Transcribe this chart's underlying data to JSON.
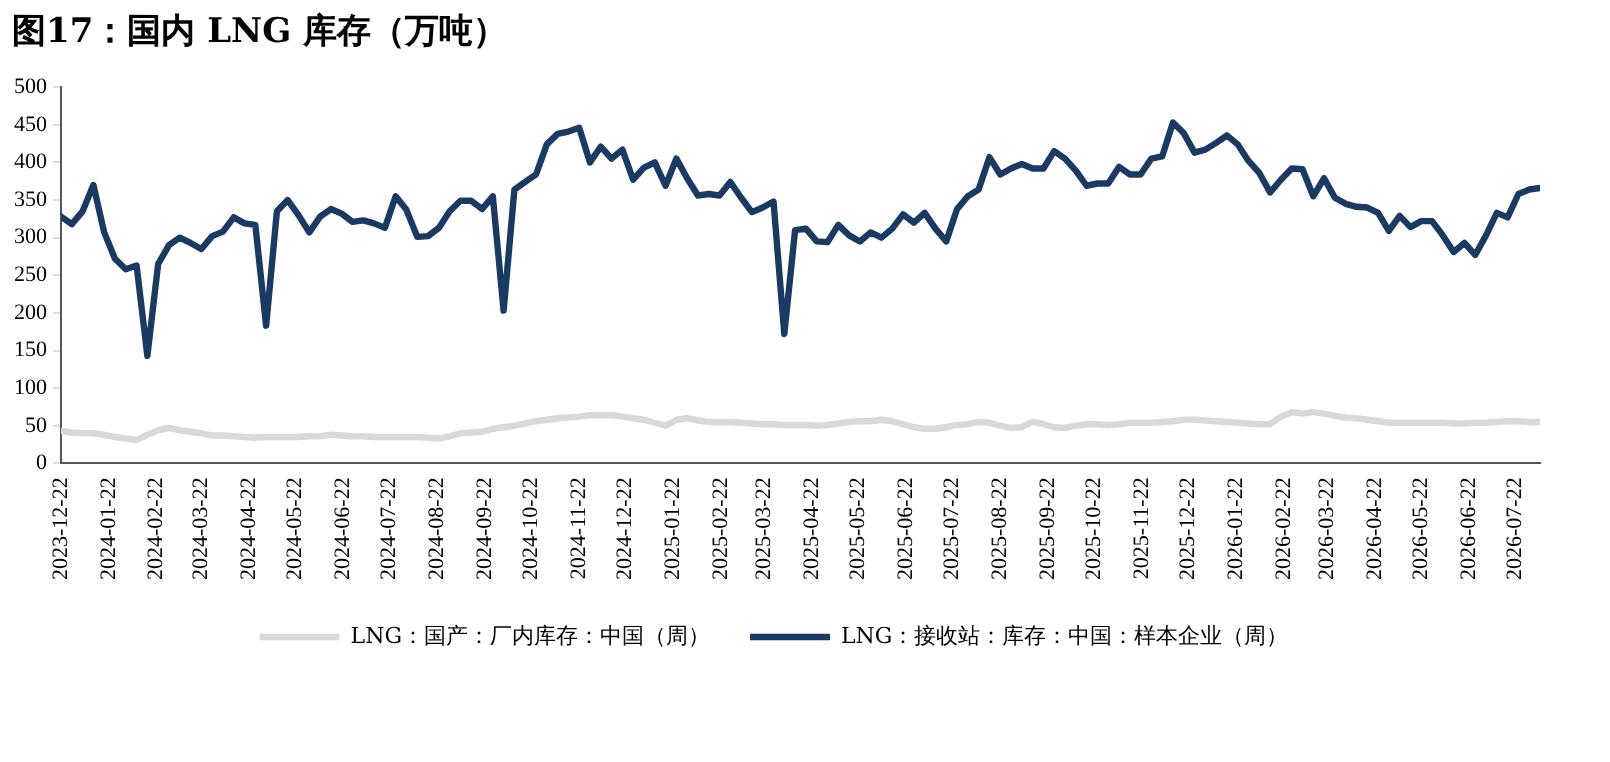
{
  "chart_data": {
    "type": "line",
    "title": "图17：国内 LNG 库存（万吨）",
    "x": [
      "2023-12-22",
      "2023-12-29",
      "2024-01-05",
      "2024-01-12",
      "2024-01-19",
      "2024-01-26",
      "2024-02-02",
      "2024-02-09",
      "2024-02-16",
      "2024-02-23",
      "2024-03-01",
      "2024-03-08",
      "2024-03-15",
      "2024-03-22",
      "2024-03-29",
      "2024-04-05",
      "2024-04-12",
      "2024-04-19",
      "2024-04-26",
      "2024-05-03",
      "2024-05-10",
      "2024-05-17",
      "2024-05-24",
      "2024-05-31",
      "2024-06-07",
      "2024-06-14",
      "2024-06-21",
      "2024-06-28",
      "2024-07-05",
      "2024-07-12",
      "2024-07-19",
      "2024-07-26",
      "2024-08-02",
      "2024-08-09",
      "2024-08-16",
      "2024-08-23",
      "2024-08-30",
      "2024-09-06",
      "2024-09-13",
      "2024-09-20",
      "2024-09-27",
      "2024-10-04",
      "2024-10-11",
      "2024-10-18",
      "2024-10-25",
      "2024-11-01",
      "2024-11-08",
      "2024-11-15",
      "2024-11-22",
      "2024-11-29",
      "2024-12-06",
      "2024-12-13",
      "2024-12-20",
      "2024-12-27",
      "2025-01-03",
      "2025-01-10",
      "2025-01-17",
      "2025-01-24",
      "2025-01-31",
      "2025-02-07",
      "2025-02-14",
      "2025-02-21",
      "2025-02-28",
      "2025-03-07",
      "2025-03-14",
      "2025-03-21",
      "2025-03-28",
      "2025-04-04",
      "2025-04-11",
      "2025-04-18",
      "2025-04-25",
      "2025-05-02",
      "2025-05-09",
      "2025-05-16",
      "2025-05-23",
      "2025-05-30",
      "2025-06-06",
      "2025-06-13",
      "2025-06-20",
      "2025-06-27",
      "2025-07-04",
      "2025-07-11",
      "2025-07-18",
      "2025-07-25",
      "2025-08-01",
      "2025-08-08",
      "2025-08-15",
      "2025-08-22",
      "2025-08-29",
      "2025-09-05",
      "2025-09-12",
      "2025-09-19",
      "2025-09-26",
      "2025-10-03",
      "2025-10-10",
      "2025-10-17",
      "2025-10-24",
      "2025-10-31",
      "2025-11-07",
      "2025-11-14",
      "2025-11-21",
      "2025-11-28",
      "2025-12-05",
      "2025-12-12",
      "2025-12-19",
      "2025-12-26",
      "2026-01-02",
      "2026-01-09",
      "2026-01-16",
      "2026-01-23",
      "2026-01-30",
      "2026-02-06",
      "2026-02-13",
      "2026-02-20",
      "2026-02-27",
      "2026-03-06",
      "2026-03-13",
      "2026-03-20",
      "2026-03-27",
      "2026-04-03",
      "2026-04-10",
      "2026-04-17",
      "2026-04-24",
      "2026-05-01",
      "2026-05-08",
      "2026-05-15",
      "2026-05-22",
      "2026-05-29",
      "2026-06-05",
      "2026-06-12",
      "2026-06-19",
      "2026-06-26",
      "2026-07-03",
      "2026-07-10",
      "2026-07-17",
      "2026-07-24",
      "2026-07-31",
      "2026-08-07"
    ],
    "series": [
      {
        "name": "LNG：国产：厂内库存：中国（周）",
        "color": "#d9d9d9",
        "values": [
          43,
          41,
          40,
          40,
          38,
          35,
          33,
          31,
          38,
          44,
          47,
          44,
          42,
          40,
          37,
          37,
          36,
          35,
          34,
          35,
          35,
          35,
          35,
          36,
          36,
          38,
          37,
          36,
          36,
          35,
          35,
          35,
          35,
          35,
          34,
          33,
          36,
          40,
          41,
          42,
          46,
          48,
          50,
          53,
          56,
          58,
          60,
          61,
          62,
          64,
          64,
          64,
          62,
          60,
          58,
          54,
          50,
          58,
          60,
          57,
          55,
          55,
          55,
          54,
          53,
          52,
          52,
          51,
          51,
          51,
          50,
          51,
          53,
          55,
          56,
          56,
          58,
          56,
          52,
          48,
          46,
          46,
          48,
          51,
          52,
          55,
          54,
          50,
          47,
          48,
          55,
          52,
          48,
          47,
          50,
          52,
          52,
          51,
          52,
          54,
          54,
          54,
          55,
          56,
          58,
          58,
          57,
          56,
          55,
          54,
          53,
          52,
          52,
          62,
          68,
          66,
          68,
          66,
          63,
          61,
          60,
          58,
          56,
          54,
          54,
          54,
          54,
          54,
          54,
          53,
          53,
          54,
          54,
          55,
          56,
          56,
          55,
          55
        ]
      },
      {
        "name": "LNG：接收站：库存：中国：样本企业（周）",
        "color": "#1b3a63",
        "values": [
          328,
          318,
          335,
          370,
          307,
          272,
          258,
          263,
          143,
          265,
          290,
          300,
          293,
          285,
          302,
          308,
          327,
          319,
          317,
          183,
          335,
          350,
          330,
          307,
          328,
          338,
          332,
          321,
          323,
          319,
          313,
          355,
          337,
          301,
          302,
          313,
          335,
          349,
          349,
          338,
          355,
          203,
          364,
          374,
          384,
          424,
          438,
          441,
          446,
          400,
          421,
          405,
          417,
          377,
          393,
          400,
          369,
          405,
          379,
          356,
          358,
          356,
          374,
          353,
          334,
          340,
          348,
          172,
          310,
          312,
          295,
          294,
          317,
          303,
          295,
          307,
          300,
          312,
          331,
          320,
          333,
          312,
          295,
          338,
          355,
          364,
          407,
          384,
          392,
          398,
          392,
          392,
          415,
          405,
          389,
          369,
          372,
          372,
          394,
          384,
          384,
          405,
          408,
          453,
          439,
          413,
          417,
          426,
          436,
          424,
          402,
          386,
          360,
          377,
          392,
          391,
          355,
          379,
          353,
          345,
          341,
          340,
          333,
          309,
          329,
          314,
          322,
          322,
          303,
          281,
          293,
          277,
          303,
          333,
          327,
          358,
          364,
          366
        ]
      }
    ],
    "xlim": [
      "2023-12-22",
      "2026-08-07"
    ],
    "xticks": [
      "2023-12-22",
      "2024-01-22",
      "2024-02-22",
      "2024-03-22",
      "2024-04-22",
      "2024-05-22",
      "2024-06-22",
      "2024-07-22",
      "2024-08-22",
      "2024-09-22",
      "2024-10-22",
      "2024-11-22",
      "2024-12-22",
      "2025-01-22",
      "2025-02-22",
      "2025-03-22",
      "2025-04-22",
      "2025-05-22",
      "2025-06-22",
      "2025-07-22",
      "2025-08-22",
      "2025-09-22",
      "2025-10-22",
      "2025-11-22",
      "2025-12-22",
      "2026-01-22",
      "2026-02-22",
      "2026-03-22",
      "2026-04-22",
      "2026-05-22",
      "2026-06-22",
      "2026-07-22"
    ],
    "ylim": [
      0,
      500
    ],
    "yticks": [
      0,
      50,
      100,
      150,
      200,
      250,
      300,
      350,
      400,
      450,
      500
    ],
    "grid": false,
    "legend": "bottom",
    "marker": "none",
    "line_style": "solid"
  }
}
